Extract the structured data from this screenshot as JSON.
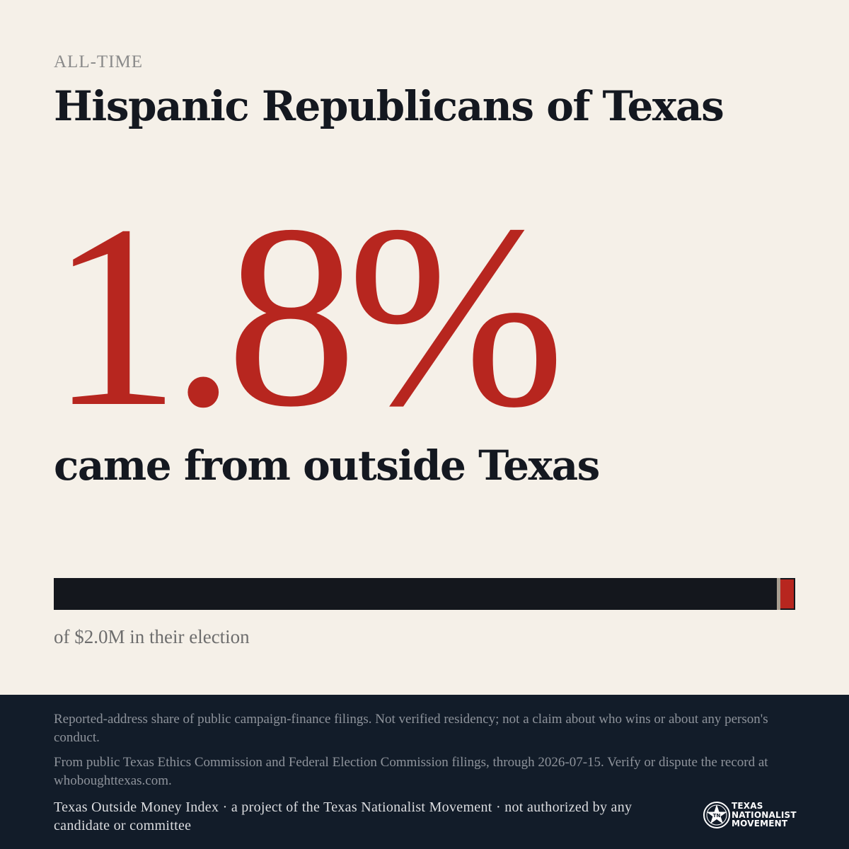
{
  "header": {
    "eyebrow": "ALL-TIME",
    "title": "Hispanic Republicans of Texas"
  },
  "stat": {
    "value": "1.8%",
    "subhead": "came from outside Texas"
  },
  "bar": {
    "outside_share_percent": 1.8,
    "caption": "of $2.0M in their election",
    "colors": {
      "inside": "#14171d",
      "outside": "#b7261f",
      "separator": "#a89e90"
    }
  },
  "footer": {
    "disclaimer": "Reported-address share of public campaign-finance filings. Not verified residency; not a claim about who wins or about any person's conduct.",
    "source": "From public Texas Ethics Commission and Federal Election Commission filings, through 2026-07-15. Verify or dispute the record at whoboughttexas.com.",
    "credit": "Texas Outside Money Index · a project of the Texas Nationalist Movement · not authorized by any candidate or committee",
    "logo": {
      "icon": "star-seal-icon",
      "line1": "TEXAS",
      "line2": "NATIONALIST",
      "line3": "MOVEMENT"
    }
  },
  "colors": {
    "background": "#f5f0e8",
    "accent_red": "#b7261f",
    "ink": "#141820",
    "footer_bg": "#121c29"
  }
}
